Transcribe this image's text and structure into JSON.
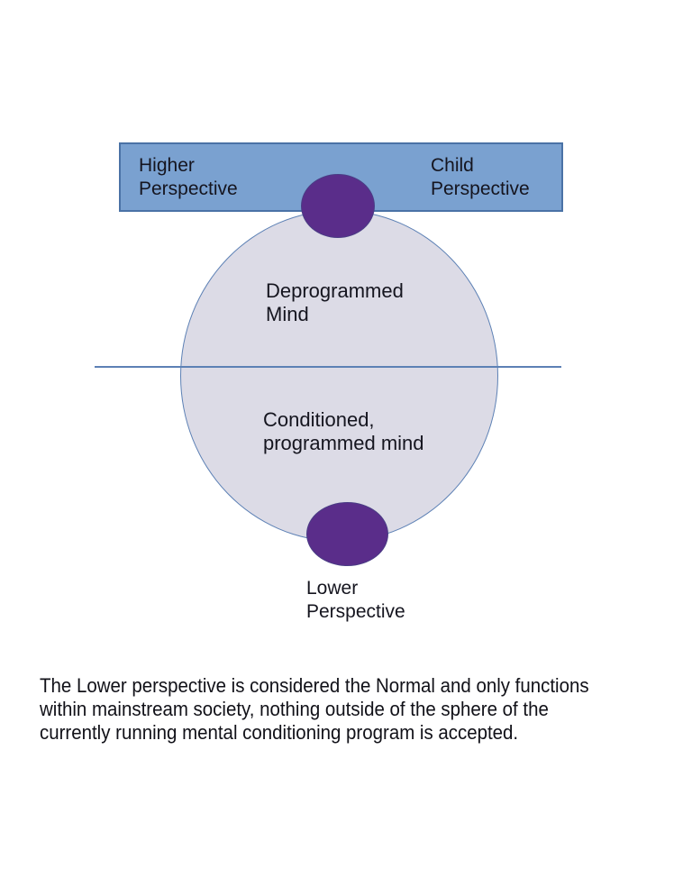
{
  "colors": {
    "background": "#ffffff",
    "banner_fill": "#7aa1d0",
    "banner_border": "#4a72a6",
    "sphere_fill": "#dcdbe6",
    "sphere_border": "#5d81b5",
    "divider_line": "#5d81b5",
    "node_fill": "#5a2d8a",
    "node_border": "#4a3d85",
    "label_text": "#15151f"
  },
  "banner": {
    "left_label": {
      "line1": "Higher",
      "line2": "Perspective"
    },
    "right_label": {
      "line1": "Child",
      "line2": "Perspective"
    }
  },
  "sphere": {
    "upper_label": {
      "line1": "Deprogrammed",
      "line2": "Mind"
    },
    "lower_label": {
      "line1": "Conditioned,",
      "line2": "programmed mind"
    }
  },
  "lower_node_label": {
    "line1": "Lower",
    "line2": "Perspective"
  },
  "caption": {
    "lines": [
      "The Lower perspective is considered the Normal and only functions",
      "within mainstream society, nothing outside of the sphere of the",
      "currently running mental conditioning program is accepted."
    ]
  }
}
